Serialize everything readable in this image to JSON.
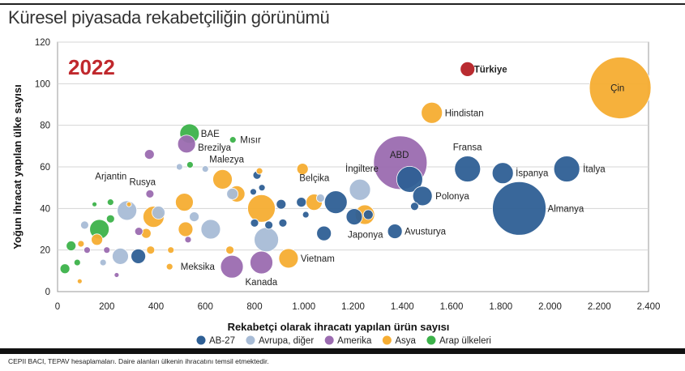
{
  "title": "Küresel piyasada rekabetçiliğin görünümü",
  "source": "CEPII BACI, TEPAV hesaplamaları. Daire alanları ülkenin ihracatını temsil etmektedir.",
  "chart_data": {
    "type": "scatter",
    "annotation": "2022",
    "annotation_color": "#c0282d",
    "xlabel": "Rekabetçi olarak ihracatı yapılan ürün sayısı",
    "ylabel": "Yoğun ihracat yapılan ülke sayısı",
    "xlim": [
      0,
      2400
    ],
    "ylim": [
      0,
      120
    ],
    "x_ticks": [
      0,
      200,
      400,
      600,
      800,
      1000,
      1200,
      1400,
      1600,
      1800,
      2000,
      2200,
      2400
    ],
    "x_tick_labels": [
      "0",
      "200",
      "400",
      "600",
      "800",
      "1.000",
      "1.200",
      "1.400",
      "1.600",
      "1.800",
      "2.000",
      "2.200",
      "2.400"
    ],
    "y_ticks": [
      0,
      20,
      40,
      60,
      80,
      100,
      120
    ],
    "y_tick_labels": [
      "0",
      "20",
      "40",
      "60",
      "80",
      "100",
      "120"
    ],
    "grid": "horizontal",
    "legend_position": "bottom",
    "groups": [
      {
        "key": "ab",
        "name": "AB-27",
        "color": "#2e5f95"
      },
      {
        "key": "avr",
        "name": "Avrupa, diğer",
        "color": "#a8bcd6"
      },
      {
        "key": "ame",
        "name": "Amerika",
        "color": "#9b6bb0"
      },
      {
        "key": "asy",
        "name": "Asya",
        "color": "#f6ad32"
      },
      {
        "key": "arap",
        "name": "Arap ülkeleri",
        "color": "#3cb24a"
      },
      {
        "key": "tr",
        "name": "",
        "color": "#b52025"
      }
    ],
    "points": [
      {
        "label": "Türkiye",
        "g": "tr",
        "x": 1665,
        "y": 107,
        "r": 9,
        "bold": true,
        "lx": 8,
        "ly": 4
      },
      {
        "label": "Çin",
        "g": "asy",
        "x": 2285,
        "y": 98,
        "r": 38,
        "lx": -12,
        "ly": 4
      },
      {
        "label": "Hindistan",
        "g": "asy",
        "x": 1520,
        "y": 86,
        "r": 13,
        "lx": 16,
        "ly": 4
      },
      {
        "label": "ABD",
        "g": "ame",
        "x": 1392,
        "y": 62,
        "r": 33,
        "lx": -13,
        "ly": -6
      },
      {
        "label": "Fransa",
        "g": "ab",
        "x": 1665,
        "y": 59,
        "r": 16,
        "lx": -18,
        "ly": -23
      },
      {
        "label": "İspanya",
        "g": "ab",
        "x": 1808,
        "y": 57,
        "r": 13,
        "lx": 16,
        "ly": 4
      },
      {
        "label": "İtalya",
        "g": "ab",
        "x": 2068,
        "y": 59,
        "r": 16,
        "lx": 20,
        "ly": 4
      },
      {
        "label": "Almanya",
        "g": "ab",
        "x": 1875,
        "y": 40,
        "r": 33,
        "lx": 35,
        "ly": 4
      },
      {
        "label": "İngiltere",
        "g": "avr",
        "x": 1228,
        "y": 49,
        "r": 13,
        "lx": -18,
        "ly": -22
      },
      {
        "label": "",
        "g": "ab",
        "x": 1430,
        "y": 54,
        "r": 16
      },
      {
        "label": "Polonya",
        "g": "ab",
        "x": 1482,
        "y": 46,
        "r": 12,
        "lx": 16,
        "ly": 4
      },
      {
        "label": "Belçika",
        "g": "ab",
        "x": 1130,
        "y": 43,
        "r": 14,
        "lx": -45,
        "ly": -26
      },
      {
        "label": "Japonya",
        "g": "ab",
        "x": 1205,
        "y": 36,
        "r": 10,
        "lx": -8,
        "ly": 26
      },
      {
        "label": "",
        "g": "asy",
        "x": 1248,
        "y": 37,
        "r": 12
      },
      {
        "label": "",
        "g": "ab",
        "x": 1262,
        "y": 37,
        "r": 6
      },
      {
        "label": "Avusturya",
        "g": "ab",
        "x": 1370,
        "y": 29,
        "r": 9,
        "lx": 12,
        "ly": 4
      },
      {
        "label": "",
        "g": "ab",
        "x": 1450,
        "y": 41,
        "r": 5
      },
      {
        "label": "",
        "g": "asy",
        "x": 1042,
        "y": 43,
        "r": 10
      },
      {
        "label": "",
        "g": "asy",
        "x": 995,
        "y": 59,
        "r": 7
      },
      {
        "label": "",
        "g": "ab",
        "x": 990,
        "y": 43,
        "r": 6
      },
      {
        "label": "",
        "g": "ab",
        "x": 1008,
        "y": 37,
        "r": 4
      },
      {
        "label": "",
        "g": "ab",
        "x": 1082,
        "y": 28,
        "r": 9
      },
      {
        "label": "",
        "g": "avr",
        "x": 1068,
        "y": 45,
        "r": 5
      },
      {
        "label": "Vietnam",
        "g": "asy",
        "x": 938,
        "y": 16,
        "r": 12,
        "lx": 15,
        "ly": 4
      },
      {
        "label": "Kanada",
        "g": "ame",
        "x": 828,
        "y": 14,
        "r": 14,
        "lx": -20,
        "ly": 28
      },
      {
        "label": "",
        "g": "asy",
        "x": 828,
        "y": 40,
        "r": 17
      },
      {
        "label": "",
        "g": "avr",
        "x": 848,
        "y": 25,
        "r": 15
      },
      {
        "label": "",
        "g": "ab",
        "x": 830,
        "y": 50,
        "r": 4
      },
      {
        "label": "",
        "g": "ab",
        "x": 908,
        "y": 42,
        "r": 6
      },
      {
        "label": "",
        "g": "ab",
        "x": 915,
        "y": 33,
        "r": 5
      },
      {
        "label": "",
        "g": "ab",
        "x": 858,
        "y": 32,
        "r": 5
      },
      {
        "label": "",
        "g": "ab",
        "x": 800,
        "y": 33,
        "r": 5
      },
      {
        "label": "",
        "g": "ab",
        "x": 810,
        "y": 56,
        "r": 5
      },
      {
        "label": "",
        "g": "asy",
        "x": 820,
        "y": 58,
        "r": 4
      },
      {
        "label": "",
        "g": "ab",
        "x": 795,
        "y": 48,
        "r": 4
      },
      {
        "label": "Mısır",
        "g": "arap",
        "x": 712,
        "y": 73,
        "r": 4,
        "lx": 9,
        "ly": 4
      },
      {
        "label": "Kanada2",
        "hidden_label": true,
        "g": "ame",
        "x": 708,
        "y": 12,
        "r": 14
      },
      {
        "label": "Meksika",
        "g": "ame",
        "x": 707,
        "y": 12,
        "r": 0,
        "lx": -63,
        "ly": 4
      },
      {
        "label": "",
        "g": "asy",
        "x": 700,
        "y": 20,
        "r": 5
      },
      {
        "label": "",
        "g": "asy",
        "x": 670,
        "y": 54,
        "r": 12
      },
      {
        "label": "",
        "g": "asy",
        "x": 728,
        "y": 47,
        "r": 10
      },
      {
        "label": "",
        "g": "avr",
        "x": 710,
        "y": 47,
        "r": 7
      },
      {
        "label": "",
        "g": "avr",
        "x": 622,
        "y": 30,
        "r": 12
      },
      {
        "label": "BAE",
        "g": "arap",
        "x": 536,
        "y": 76,
        "r": 12,
        "lx": 14,
        "ly": 4
      },
      {
        "label": "Brezilya",
        "g": "ame",
        "x": 524,
        "y": 71,
        "r": 11,
        "lx": 14,
        "ly": 8
      },
      {
        "label": "Malezya",
        "g": "avr",
        "x": 600,
        "y": 59,
        "r": 4,
        "lx": 5,
        "ly": -8
      },
      {
        "label": "",
        "g": "arap",
        "x": 538,
        "y": 61,
        "r": 4
      },
      {
        "label": "",
        "g": "asy",
        "x": 515,
        "y": 43,
        "r": 11
      },
      {
        "label": "",
        "g": "asy",
        "x": 520,
        "y": 30,
        "r": 9
      },
      {
        "label": "",
        "g": "avr",
        "x": 555,
        "y": 36,
        "r": 6
      },
      {
        "label": "",
        "g": "ame",
        "x": 530,
        "y": 25,
        "r": 4
      },
      {
        "label": "Arjantin",
        "g": "ame",
        "x": 373,
        "y": 66,
        "r": 6,
        "lx": -67,
        "ly": 31
      },
      {
        "label": "",
        "g": "avr",
        "x": 495,
        "y": 60,
        "r": 4
      },
      {
        "label": "Rusya",
        "g": "asy",
        "x": 390,
        "y": 36,
        "r": 13,
        "lx": -30,
        "ly": -39
      },
      {
        "label": "",
        "g": "ame",
        "x": 375,
        "y": 47,
        "r": 5
      },
      {
        "label": "",
        "g": "avr",
        "x": 410,
        "y": 38,
        "r": 8
      },
      {
        "label": "",
        "g": "asy",
        "x": 460,
        "y": 20,
        "r": 4
      },
      {
        "label": "",
        "g": "asy",
        "x": 455,
        "y": 12,
        "r": 4
      },
      {
        "label": "",
        "g": "avr",
        "x": 282,
        "y": 39,
        "r": 12
      },
      {
        "label": "",
        "g": "avr",
        "x": 255,
        "y": 17,
        "r": 10
      },
      {
        "label": "",
        "g": "ab",
        "x": 328,
        "y": 17,
        "r": 9
      },
      {
        "label": "",
        "g": "ame",
        "x": 330,
        "y": 29,
        "r": 5
      },
      {
        "label": "",
        "g": "asy",
        "x": 360,
        "y": 28,
        "r": 6
      },
      {
        "label": "",
        "g": "asy",
        "x": 378,
        "y": 20,
        "r": 5
      },
      {
        "label": "",
        "g": "arap",
        "x": 170,
        "y": 30,
        "r": 12
      },
      {
        "label": "",
        "g": "asy",
        "x": 160,
        "y": 25,
        "r": 7
      },
      {
        "label": "",
        "g": "arap",
        "x": 215,
        "y": 35,
        "r": 5
      },
      {
        "label": "",
        "g": "arap",
        "x": 215,
        "y": 43,
        "r": 4
      },
      {
        "label": "",
        "g": "avr",
        "x": 110,
        "y": 32,
        "r": 5
      },
      {
        "label": "",
        "g": "ame",
        "x": 120,
        "y": 20,
        "r": 4
      },
      {
        "label": "",
        "g": "arap",
        "x": 55,
        "y": 22,
        "r": 6
      },
      {
        "label": "",
        "g": "arap",
        "x": 30,
        "y": 11,
        "r": 6
      },
      {
        "label": "",
        "g": "asy",
        "x": 95,
        "y": 23,
        "r": 4
      },
      {
        "label": "",
        "g": "arap",
        "x": 80,
        "y": 14,
        "r": 4
      },
      {
        "label": "",
        "g": "ame",
        "x": 200,
        "y": 20,
        "r": 4
      },
      {
        "label": "",
        "g": "avr",
        "x": 185,
        "y": 14,
        "r": 4
      },
      {
        "label": "",
        "g": "asy",
        "x": 90,
        "y": 5,
        "r": 3
      },
      {
        "label": "",
        "g": "ame",
        "x": 240,
        "y": 8,
        "r": 3
      },
      {
        "label": "",
        "g": "asy",
        "x": 290,
        "y": 42,
        "r": 3
      },
      {
        "label": "",
        "g": "arap",
        "x": 150,
        "y": 42,
        "r": 3
      }
    ]
  },
  "legend_items": [
    {
      "name": "AB-27",
      "color": "#2e5f95"
    },
    {
      "name": "Avrupa, diğer",
      "color": "#a8bcd6"
    },
    {
      "name": "Amerika",
      "color": "#9b6bb0"
    },
    {
      "name": "Asya",
      "color": "#f6ad32"
    },
    {
      "name": "Arap ülkeleri",
      "color": "#3cb24a"
    }
  ]
}
